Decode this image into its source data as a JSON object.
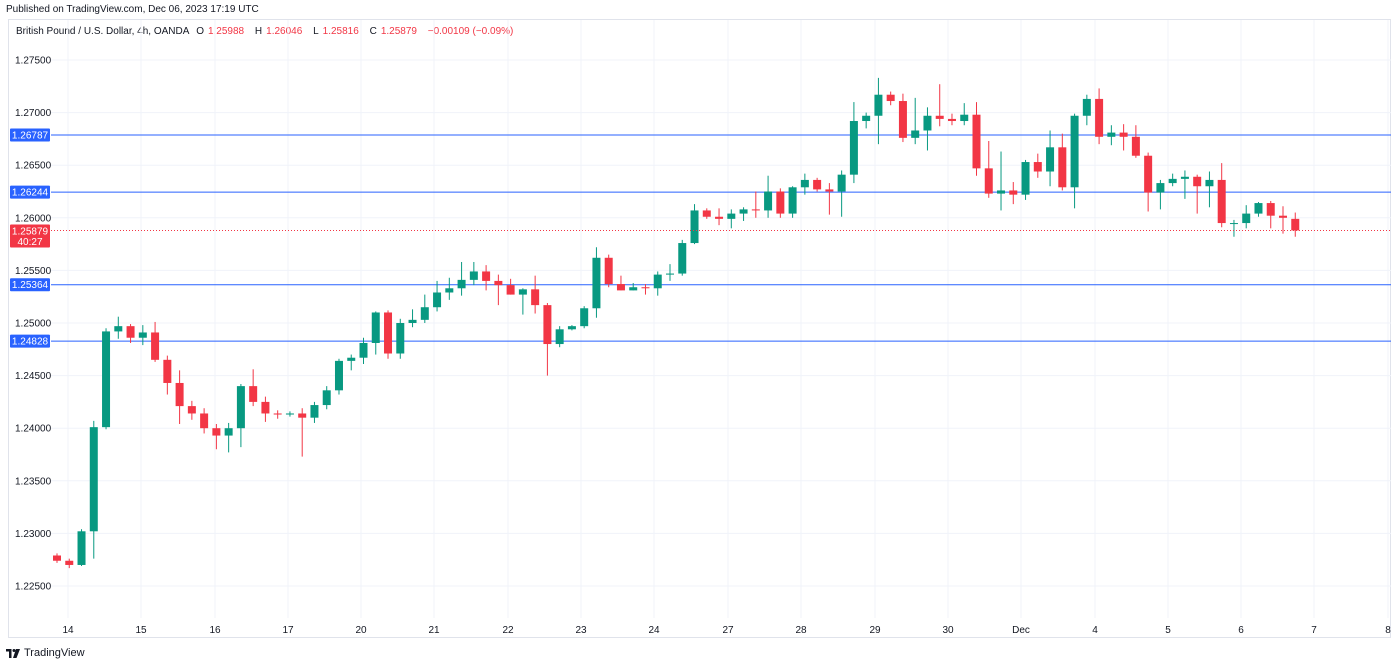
{
  "header": {
    "published": "Published on TradingView.com, Dec 06, 2023 17:19 UTC"
  },
  "legend": {
    "symbol": "British Pound / U.S. Dollar, 4h, OANDA",
    "o_label": "O",
    "o": "1.25988",
    "h_label": "H",
    "h": "1.26046",
    "l_label": "L",
    "l": "1.25816",
    "c_label": "C",
    "c": "1.25879",
    "change": "−0.00109 (−0.09%)"
  },
  "footer": {
    "brand": "TradingView",
    "logo_icon": "tradingview-logo-icon"
  },
  "colors": {
    "up": "#089981",
    "down": "#f23645",
    "hline": "#2962ff",
    "grid": "#f0f3fa",
    "axis_text": "#131722",
    "price_tag": "#f23645"
  },
  "chart_data": {
    "type": "candlestick",
    "title": "British Pound / U.S. Dollar, 4h, OANDA",
    "ylim": [
      1.2225,
      1.2775
    ],
    "y_ticks": [
      "1.27500",
      "1.27000",
      "1.26500",
      "1.26000",
      "1.25500",
      "1.25000",
      "1.24500",
      "1.24000",
      "1.23500",
      "1.23000",
      "1.22500"
    ],
    "x_tick_labels": [
      "14",
      "15",
      "16",
      "17",
      "20",
      "21",
      "22",
      "23",
      "24",
      "27",
      "28",
      "29",
      "30",
      "Dec",
      "4",
      "5",
      "6",
      "7",
      "8"
    ],
    "horizontal_levels": [
      {
        "price": 1.26787,
        "label": "1.26787"
      },
      {
        "price": 1.26244,
        "label": "1.26244"
      },
      {
        "price": 1.25364,
        "label": "1.25364"
      },
      {
        "price": 1.24828,
        "label": "1.24828"
      }
    ],
    "last_price": {
      "price": 1.25879,
      "label": "1.25879",
      "countdown": "40:27"
    },
    "grid": true,
    "candles": [
      {
        "o": 1.2279,
        "h": 1.2281,
        "l": 1.2272,
        "c": 1.2274
      },
      {
        "o": 1.2274,
        "h": 1.2276,
        "l": 1.2267,
        "c": 1.227
      },
      {
        "o": 1.227,
        "h": 1.2304,
        "l": 1.2269,
        "c": 1.2302
      },
      {
        "o": 1.2302,
        "h": 1.2407,
        "l": 1.2276,
        "c": 1.2401
      },
      {
        "o": 1.2401,
        "h": 1.2495,
        "l": 1.2399,
        "c": 1.2492
      },
      {
        "o": 1.2492,
        "h": 1.2506,
        "l": 1.2485,
        "c": 1.2497
      },
      {
        "o": 1.2497,
        "h": 1.2499,
        "l": 1.2481,
        "c": 1.2486
      },
      {
        "o": 1.2486,
        "h": 1.2498,
        "l": 1.2479,
        "c": 1.2491
      },
      {
        "o": 1.2491,
        "h": 1.2501,
        "l": 1.2463,
        "c": 1.2465
      },
      {
        "o": 1.2465,
        "h": 1.2469,
        "l": 1.2432,
        "c": 1.2443
      },
      {
        "o": 1.2443,
        "h": 1.2455,
        "l": 1.2404,
        "c": 1.2421
      },
      {
        "o": 1.2421,
        "h": 1.2426,
        "l": 1.2408,
        "c": 1.2414
      },
      {
        "o": 1.2414,
        "h": 1.2419,
        "l": 1.2395,
        "c": 1.24
      },
      {
        "o": 1.24,
        "h": 1.2404,
        "l": 1.238,
        "c": 1.2393
      },
      {
        "o": 1.2393,
        "h": 1.2405,
        "l": 1.2377,
        "c": 1.24
      },
      {
        "o": 1.24,
        "h": 1.2442,
        "l": 1.2382,
        "c": 1.244
      },
      {
        "o": 1.244,
        "h": 1.2456,
        "l": 1.2421,
        "c": 1.2425
      },
      {
        "o": 1.2425,
        "h": 1.243,
        "l": 1.2406,
        "c": 1.2414
      },
      {
        "o": 1.2414,
        "h": 1.2417,
        "l": 1.2409,
        "c": 1.2413
      },
      {
        "o": 1.2413,
        "h": 1.2416,
        "l": 1.2411,
        "c": 1.2414
      },
      {
        "o": 1.2414,
        "h": 1.2419,
        "l": 1.2373,
        "c": 1.241
      },
      {
        "o": 1.241,
        "h": 1.2425,
        "l": 1.2405,
        "c": 1.2422
      },
      {
        "o": 1.2422,
        "h": 1.244,
        "l": 1.2418,
        "c": 1.2436
      },
      {
        "o": 1.2436,
        "h": 1.2466,
        "l": 1.2432,
        "c": 1.2464
      },
      {
        "o": 1.2464,
        "h": 1.247,
        "l": 1.2455,
        "c": 1.2467
      },
      {
        "o": 1.2467,
        "h": 1.2486,
        "l": 1.2461,
        "c": 1.2481
      },
      {
        "o": 1.2481,
        "h": 1.2511,
        "l": 1.247,
        "c": 1.251
      },
      {
        "o": 1.251,
        "h": 1.2512,
        "l": 1.2466,
        "c": 1.2471
      },
      {
        "o": 1.2471,
        "h": 1.2504,
        "l": 1.2466,
        "c": 1.25
      },
      {
        "o": 1.25,
        "h": 1.2513,
        "l": 1.2496,
        "c": 1.2503
      },
      {
        "o": 1.2503,
        "h": 1.2527,
        "l": 1.25,
        "c": 1.2515
      },
      {
        "o": 1.2515,
        "h": 1.254,
        "l": 1.2511,
        "c": 1.2529
      },
      {
        "o": 1.2529,
        "h": 1.2543,
        "l": 1.2522,
        "c": 1.2533
      },
      {
        "o": 1.2533,
        "h": 1.2558,
        "l": 1.2526,
        "c": 1.2541
      },
      {
        "o": 1.2541,
        "h": 1.2558,
        "l": 1.2536,
        "c": 1.2549
      },
      {
        "o": 1.2549,
        "h": 1.2555,
        "l": 1.2531,
        "c": 1.254
      },
      {
        "o": 1.254,
        "h": 1.2546,
        "l": 1.2517,
        "c": 1.2536
      },
      {
        "o": 1.2536,
        "h": 1.2542,
        "l": 1.2527,
        "c": 1.2527
      },
      {
        "o": 1.2527,
        "h": 1.2533,
        "l": 1.2508,
        "c": 1.2532
      },
      {
        "o": 1.2532,
        "h": 1.2545,
        "l": 1.2509,
        "c": 1.2517
      },
      {
        "o": 1.2517,
        "h": 1.2519,
        "l": 1.245,
        "c": 1.248
      },
      {
        "o": 1.248,
        "h": 1.2497,
        "l": 1.2477,
        "c": 1.2494
      },
      {
        "o": 1.2494,
        "h": 1.2498,
        "l": 1.2493,
        "c": 1.2497
      },
      {
        "o": 1.2497,
        "h": 1.2516,
        "l": 1.2495,
        "c": 1.2514
      },
      {
        "o": 1.2514,
        "h": 1.2572,
        "l": 1.2505,
        "c": 1.2562
      },
      {
        "o": 1.2562,
        "h": 1.2565,
        "l": 1.2534,
        "c": 1.2537
      },
      {
        "o": 1.2537,
        "h": 1.2545,
        "l": 1.2531,
        "c": 1.2531
      },
      {
        "o": 1.2531,
        "h": 1.2538,
        "l": 1.2531,
        "c": 1.2534
      },
      {
        "o": 1.2534,
        "h": 1.2537,
        "l": 1.2527,
        "c": 1.2533
      },
      {
        "o": 1.2533,
        "h": 1.2549,
        "l": 1.2526,
        "c": 1.2546
      },
      {
        "o": 1.2546,
        "h": 1.2556,
        "l": 1.254,
        "c": 1.2547
      },
      {
        "o": 1.2547,
        "h": 1.2579,
        "l": 1.2545,
        "c": 1.2576
      },
      {
        "o": 1.2576,
        "h": 1.2613,
        "l": 1.2575,
        "c": 1.2607
      },
      {
        "o": 1.2607,
        "h": 1.2609,
        "l": 1.2599,
        "c": 1.2601
      },
      {
        "o": 1.2601,
        "h": 1.2609,
        "l": 1.2593,
        "c": 1.2599
      },
      {
        "o": 1.2599,
        "h": 1.2608,
        "l": 1.259,
        "c": 1.2604
      },
      {
        "o": 1.2604,
        "h": 1.261,
        "l": 1.2597,
        "c": 1.2608
      },
      {
        "o": 1.2608,
        "h": 1.2625,
        "l": 1.26,
        "c": 1.2607
      },
      {
        "o": 1.2607,
        "h": 1.264,
        "l": 1.26,
        "c": 1.2625
      },
      {
        "o": 1.2625,
        "h": 1.2628,
        "l": 1.26,
        "c": 1.2604
      },
      {
        "o": 1.2604,
        "h": 1.263,
        "l": 1.26,
        "c": 1.2629
      },
      {
        "o": 1.2629,
        "h": 1.2642,
        "l": 1.2622,
        "c": 1.2636
      },
      {
        "o": 1.2636,
        "h": 1.2638,
        "l": 1.2625,
        "c": 1.2627
      },
      {
        "o": 1.2627,
        "h": 1.2633,
        "l": 1.2603,
        "c": 1.2625
      },
      {
        "o": 1.2625,
        "h": 1.2645,
        "l": 1.2601,
        "c": 1.2641
      },
      {
        "o": 1.2641,
        "h": 1.271,
        "l": 1.2633,
        "c": 1.2692
      },
      {
        "o": 1.2692,
        "h": 1.27,
        "l": 1.2685,
        "c": 1.2697
      },
      {
        "o": 1.2697,
        "h": 1.2733,
        "l": 1.267,
        "c": 1.2717
      },
      {
        "o": 1.2717,
        "h": 1.272,
        "l": 1.2707,
        "c": 1.2711
      },
      {
        "o": 1.2711,
        "h": 1.2718,
        "l": 1.2672,
        "c": 1.2676
      },
      {
        "o": 1.2676,
        "h": 1.2714,
        "l": 1.267,
        "c": 1.2683
      },
      {
        "o": 1.2683,
        "h": 1.2705,
        "l": 1.2664,
        "c": 1.2697
      },
      {
        "o": 1.2697,
        "h": 1.2727,
        "l": 1.2687,
        "c": 1.2694
      },
      {
        "o": 1.2694,
        "h": 1.2699,
        "l": 1.2688,
        "c": 1.2692
      },
      {
        "o": 1.2692,
        "h": 1.2709,
        "l": 1.2688,
        "c": 1.2698
      },
      {
        "o": 1.2698,
        "h": 1.271,
        "l": 1.264,
        "c": 1.2647
      },
      {
        "o": 1.2647,
        "h": 1.2673,
        "l": 1.2619,
        "c": 1.2623
      },
      {
        "o": 1.2623,
        "h": 1.2663,
        "l": 1.2607,
        "c": 1.2626
      },
      {
        "o": 1.2626,
        "h": 1.2634,
        "l": 1.2613,
        "c": 1.2622
      },
      {
        "o": 1.2622,
        "h": 1.2655,
        "l": 1.2617,
        "c": 1.2653
      },
      {
        "o": 1.2653,
        "h": 1.2661,
        "l": 1.2638,
        "c": 1.2644
      },
      {
        "o": 1.2644,
        "h": 1.2683,
        "l": 1.263,
        "c": 1.2667
      },
      {
        "o": 1.2667,
        "h": 1.268,
        "l": 1.2626,
        "c": 1.2629
      },
      {
        "o": 1.2629,
        "h": 1.2699,
        "l": 1.2609,
        "c": 1.2697
      },
      {
        "o": 1.2697,
        "h": 1.2717,
        "l": 1.2688,
        "c": 1.2713
      },
      {
        "o": 1.2713,
        "h": 1.2723,
        "l": 1.267,
        "c": 1.2677
      },
      {
        "o": 1.2677,
        "h": 1.2688,
        "l": 1.2669,
        "c": 1.2681
      },
      {
        "o": 1.2681,
        "h": 1.2689,
        "l": 1.2664,
        "c": 1.2677
      },
      {
        "o": 1.2677,
        "h": 1.2688,
        "l": 1.2657,
        "c": 1.2659
      },
      {
        "o": 1.2659,
        "h": 1.2662,
        "l": 1.2606,
        "c": 1.2624
      },
      {
        "o": 1.2624,
        "h": 1.2636,
        "l": 1.2608,
        "c": 1.2633
      },
      {
        "o": 1.2633,
        "h": 1.2642,
        "l": 1.263,
        "c": 1.2637
      },
      {
        "o": 1.2637,
        "h": 1.2645,
        "l": 1.2618,
        "c": 1.2639
      },
      {
        "o": 1.2639,
        "h": 1.2641,
        "l": 1.2604,
        "c": 1.263
      },
      {
        "o": 1.263,
        "h": 1.2644,
        "l": 1.261,
        "c": 1.2636
      },
      {
        "o": 1.2636,
        "h": 1.2652,
        "l": 1.2591,
        "c": 1.2595
      },
      {
        "o": 1.2595,
        "h": 1.2598,
        "l": 1.2582,
        "c": 1.2595
      },
      {
        "o": 1.2595,
        "h": 1.2612,
        "l": 1.259,
        "c": 1.2604
      },
      {
        "o": 1.2604,
        "h": 1.2615,
        "l": 1.2601,
        "c": 1.2614
      },
      {
        "o": 1.2614,
        "h": 1.2616,
        "l": 1.259,
        "c": 1.2602
      },
      {
        "o": 1.2602,
        "h": 1.2611,
        "l": 1.2585,
        "c": 1.26
      },
      {
        "o": 1.2599,
        "h": 1.2605,
        "l": 1.2582,
        "c": 1.2588
      }
    ]
  }
}
